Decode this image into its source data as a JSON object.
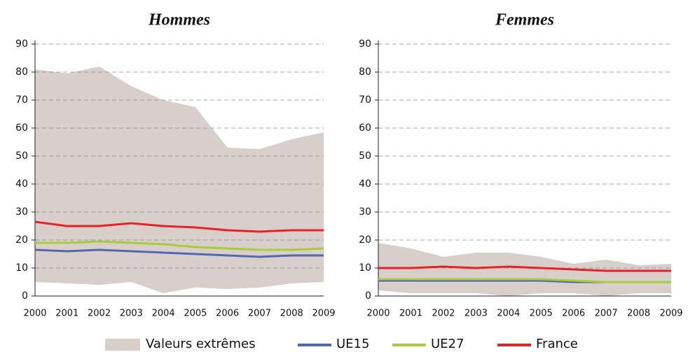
{
  "chart_data": [
    {
      "type": "line",
      "title": "Hommes",
      "categories": [
        "2000",
        "2001",
        "2002",
        "2003",
        "2004",
        "2005",
        "2006",
        "2007",
        "2008",
        "2009"
      ],
      "ylim": [
        0,
        90
      ],
      "yticks": [
        0,
        10,
        20,
        30,
        40,
        50,
        60,
        70,
        80,
        90
      ],
      "grid": true,
      "series": [
        {
          "name": "Valeurs extrêmes",
          "color": "#d8cfcb",
          "values": [
            81,
            79.5,
            82,
            75,
            70,
            67.5,
            53,
            52.5,
            56,
            58.5
          ],
          "lower": [
            5,
            4.5,
            4,
            5,
            1,
            3,
            2.5,
            3,
            4.5,
            5
          ]
        },
        {
          "name": "UE15",
          "color": "#5068b0",
          "values": [
            16.5,
            16,
            16.5,
            16,
            15.5,
            15,
            14.5,
            14,
            14.5,
            14.5
          ]
        },
        {
          "name": "UE27",
          "color": "#a8cc3a",
          "values": [
            19,
            19,
            19.5,
            19,
            18.5,
            17.5,
            17,
            16.5,
            16.5,
            17
          ]
        },
        {
          "name": "France",
          "color": "#e42228",
          "values": [
            26.5,
            25,
            25,
            26,
            25,
            24.5,
            23.5,
            23,
            23.5,
            23.5
          ]
        }
      ]
    },
    {
      "type": "line",
      "title": "Femmes",
      "categories": [
        "2000",
        "2001",
        "2002",
        "2003",
        "2004",
        "2005",
        "2006",
        "2007",
        "2008",
        "2009"
      ],
      "ylim": [
        0,
        90
      ],
      "yticks": [
        0,
        10,
        20,
        30,
        40,
        50,
        60,
        70,
        80,
        90
      ],
      "grid": true,
      "series": [
        {
          "name": "Valeurs extrêmes",
          "color": "#d8cfcb",
          "values": [
            19,
            17,
            14,
            15.5,
            15.5,
            14,
            11.5,
            13,
            11,
            11.5
          ],
          "lower": [
            2,
            1,
            1,
            1,
            0,
            1,
            1,
            0,
            1,
            1
          ]
        },
        {
          "name": "UE15",
          "color": "#5068b0",
          "values": [
            5.5,
            5.5,
            5.5,
            5.5,
            5.5,
            5.5,
            5,
            5,
            5,
            5
          ]
        },
        {
          "name": "UE27",
          "color": "#a8cc3a",
          "values": [
            6,
            6,
            6,
            6,
            6,
            6,
            5.5,
            5,
            5,
            5
          ]
        },
        {
          "name": "France",
          "color": "#e42228",
          "values": [
            10,
            10,
            10.5,
            10,
            10.5,
            10,
            9.5,
            9,
            9,
            9
          ]
        }
      ]
    }
  ]
}
